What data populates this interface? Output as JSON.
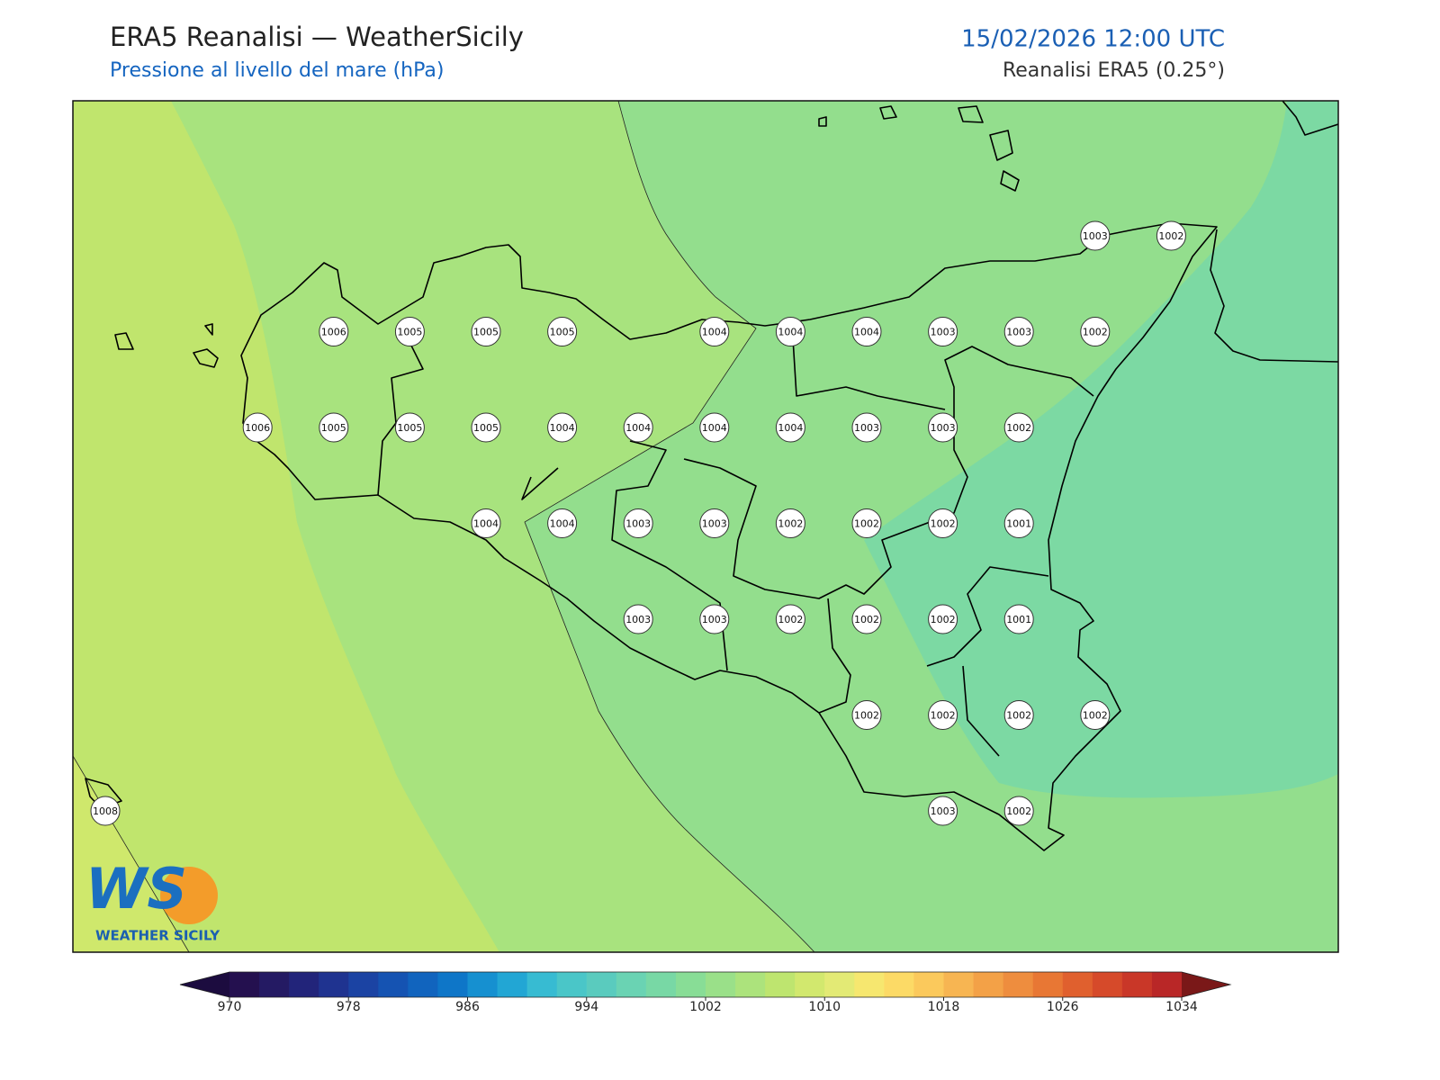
{
  "header": {
    "title": "ERA5 Reanalisi — WeatherSicily",
    "subtitle": "Pressione al livello del mare (hPa)",
    "datetime": "15/02/2026 12:00 UTC",
    "source": "Reanalisi ERA5 (0.25°)"
  },
  "pressure_grid": {
    "rows": [
      [
        null,
        null,
        null,
        null,
        null,
        null,
        null,
        null,
        null,
        null,
        null,
        null,
        null,
        1003,
        1002
      ],
      [
        null,
        null,
        null,
        1006,
        1005,
        1005,
        1005,
        null,
        1004,
        1004,
        1004,
        1003,
        1003,
        1002,
        null
      ],
      [
        null,
        null,
        1006,
        1005,
        1005,
        1005,
        1004,
        1004,
        1004,
        1004,
        1003,
        1003,
        1002,
        null,
        null
      ],
      [
        null,
        null,
        null,
        null,
        null,
        1004,
        1004,
        1003,
        1003,
        1002,
        1002,
        1002,
        1001,
        null,
        null
      ],
      [
        null,
        null,
        null,
        null,
        null,
        null,
        null,
        1003,
        1003,
        1002,
        1002,
        1002,
        1001,
        null,
        null
      ],
      [
        null,
        null,
        null,
        null,
        null,
        null,
        null,
        null,
        null,
        null,
        1002,
        1002,
        1002,
        1002,
        null
      ],
      [
        1008,
        null,
        null,
        null,
        null,
        null,
        null,
        null,
        null,
        null,
        null,
        1003,
        1002,
        null,
        null
      ]
    ]
  },
  "colorbar": {
    "lim": [
      970,
      1034
    ],
    "ticks": [
      970,
      978,
      986,
      994,
      1002,
      1010,
      1018,
      1026,
      1034
    ],
    "colors": [
      "#24104f",
      "#241a63",
      "#22247a",
      "#1f3390",
      "#1b43a3",
      "#1553b2",
      "#1164be",
      "#0e76c8",
      "#1690d0",
      "#22a6d4",
      "#37bbd2",
      "#4ac6c8",
      "#5acbbe",
      "#6ad3b3",
      "#78d8a5",
      "#88dd96",
      "#9ae089",
      "#ace37c",
      "#bee56f",
      "#d2e86e",
      "#e3ea75",
      "#f6e76f",
      "#fcda66",
      "#fbc95c",
      "#f7b552",
      "#f3a147",
      "#ee8d3e",
      "#e87734",
      "#e0602e",
      "#d64a2a",
      "#c93728",
      "#b92727"
    ],
    "under_color": "#1c0c3f",
    "over_color": "#7a1818"
  },
  "logo": {
    "mark": "WS",
    "text": "WEATHER SICILY"
  }
}
